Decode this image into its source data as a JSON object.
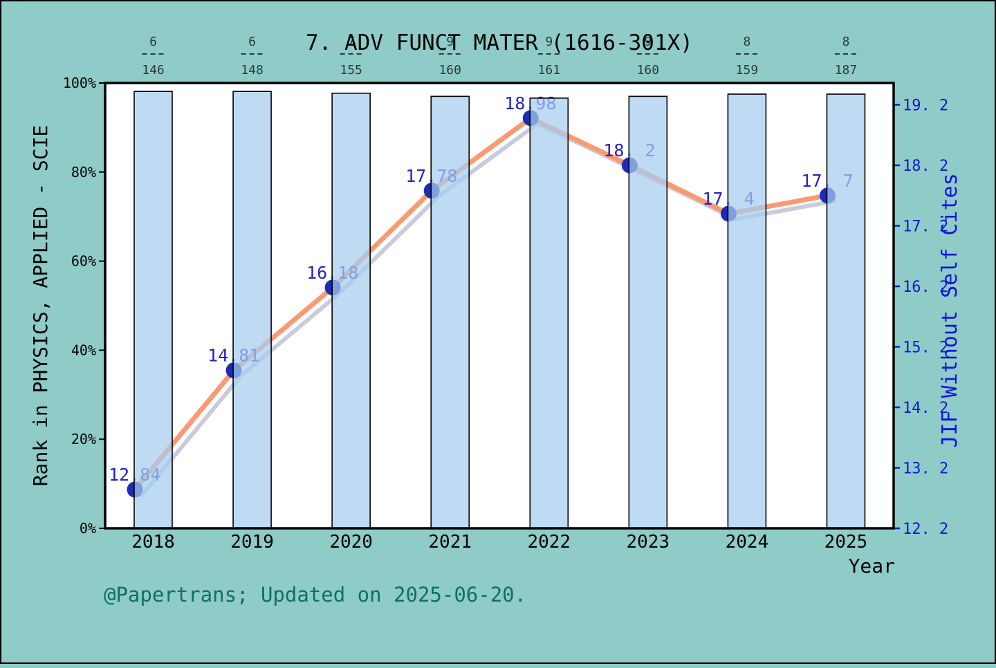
{
  "title": "7. ADV FUNCT MATER (1616-301X)",
  "footer": "@Papertrans; Updated on 2025-06-20.",
  "axes": {
    "left_label": "Rank in PHYSICS, APPLIED - SCIE",
    "right_label": "JIF Without Self Cites",
    "x_label": "Year"
  },
  "chart_data": {
    "type": "bar+line (dual axis)",
    "x": [
      2018,
      2019,
      2020,
      2021,
      2022,
      2023,
      2024,
      2025
    ],
    "bars": {
      "name": "Rank percentile in PHYSICS, APPLIED - SCIE",
      "axis": "left",
      "unit": "%",
      "values_percent": [
        98.1,
        98.1,
        97.7,
        97.0,
        96.6,
        97.0,
        97.5,
        97.5
      ],
      "rank_fractions": [
        {
          "rank": "6",
          "total": "146"
        },
        {
          "rank": "6",
          "total": "148"
        },
        {
          "rank": "7",
          "total": "155"
        },
        {
          "rank": "9",
          "total": "160"
        },
        {
          "rank": "9",
          "total": "161"
        },
        {
          "rank": "9",
          "total": "160"
        },
        {
          "rank": "8",
          "total": "159"
        },
        {
          "rank": "8",
          "total": "187"
        }
      ]
    },
    "line": {
      "name": "JIF Without Self Cites",
      "axis": "right",
      "values": [
        12.84,
        14.81,
        16.18,
        17.78,
        18.98,
        18.2,
        17.4,
        17.7
      ],
      "point_labels": [
        "12.84",
        "14.81",
        "16.18",
        "17.78",
        "18.98",
        "18. 2",
        "17. 4",
        "17. 7"
      ]
    },
    "left_axis": {
      "min": 0,
      "max": 100,
      "tick_labels": [
        "0%",
        "20%",
        "40%",
        "60%",
        "80%",
        "100%"
      ]
    },
    "right_axis": {
      "min": 12.2,
      "tick_step": 1.0,
      "tick_labels": [
        "12. 2",
        "13. 2",
        "14. 2",
        "15. 2",
        "16. 2",
        "17. 2",
        "18. 2",
        "19. 2"
      ]
    },
    "grid": false,
    "legend": false
  },
  "colors": {
    "background": "#8fccc7",
    "plot_background": "#ffffff",
    "bar_fill": "#a6cdf0",
    "bar_border": "#000000",
    "line_orange": "#fa9a72",
    "line_silver": "#c8cbdc",
    "marker_navy": "#1c2cb3",
    "value_label_blue": "#2222cc",
    "right_axis_blue": "#1414e0",
    "fraction_text": "#2f3a3a",
    "footer_teal": "#0e6f6a",
    "axis_text_black": "#000000"
  }
}
